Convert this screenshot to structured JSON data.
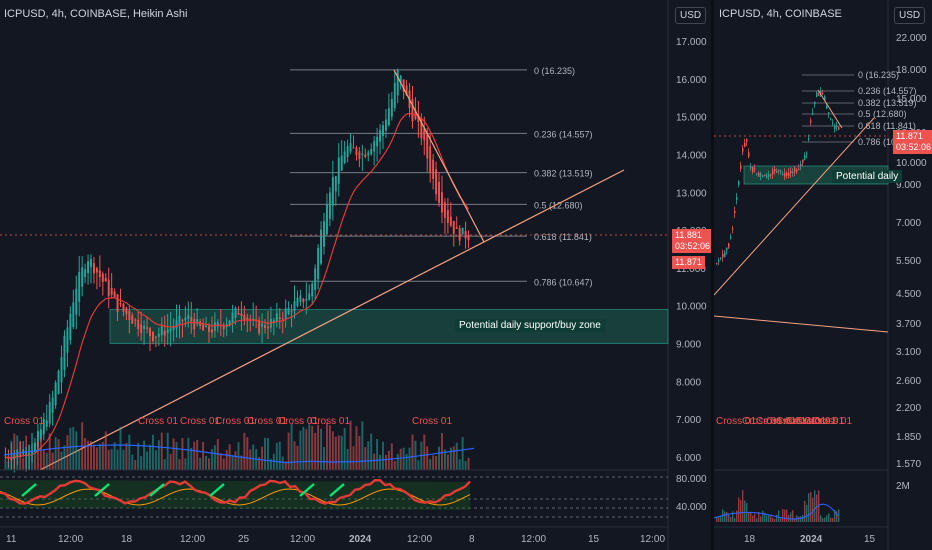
{
  "left_panel": {
    "title": "ICPUSD, 4h, COINBASE, Heikin Ashi",
    "currency_button": "USD",
    "price_axis": [
      "17.000",
      "16.000",
      "15.000",
      "14.000",
      "13.000",
      "12.000",
      "11.000",
      "10.000",
      "9.000",
      "8.000",
      "7.000",
      "6.000"
    ],
    "fib_levels": [
      {
        "label": "0 (16.235)",
        "value": 16.235
      },
      {
        "label": "0.236 (14.557)",
        "value": 14.557
      },
      {
        "label": "0.382 (13.519)",
        "value": 13.519
      },
      {
        "label": "0.5 (12.680)",
        "value": 12.68
      },
      {
        "label": "0.618 (11.841)",
        "value": 11.841
      },
      {
        "label": "0.786 (10.647)",
        "value": 10.647
      }
    ],
    "zone_label": "Potential daily support/buy zone",
    "zone_range": [
      9.0,
      9.9
    ],
    "tags": {
      "price": "11.881",
      "countdown": "03:52:06",
      "low": "11.871"
    },
    "cross_labels": [
      "Cross 01",
      "Cross 01",
      "Cross 01",
      "Cross 01",
      "Cross 01",
      "Cross 01",
      "Cross 01",
      "Cross 01"
    ],
    "osc_axis": [
      "80.000",
      "40.000"
    ],
    "time_axis": [
      "11",
      "12:00",
      "18",
      "12:00",
      "25",
      "12:00",
      "2024",
      "12:00",
      "8",
      "12:00",
      "15",
      "12:00"
    ]
  },
  "right_panel": {
    "title": "ICPUSD, 4h, COINBASE",
    "currency_button": "USD",
    "price_axis": [
      "22.000",
      "18.000",
      "15.000",
      "12.000",
      "10.000",
      "9.000",
      "7.000",
      "5.500",
      "4.500",
      "3.700",
      "3.100",
      "2.600",
      "2.200",
      "1.850",
      "1.570"
    ],
    "fib_labels": [
      "0 (16.235)",
      "0.236 (14.557)",
      "0.382 (13.519)",
      "0.5 (12.680)",
      "0.618 (11.841)",
      "0.786 (10.647)"
    ],
    "zone_label": "Potential daily",
    "tags": {
      "price": "11.871",
      "countdown": "03:52:06"
    },
    "cross_labels": [
      "Cross 01",
      "Cross 01",
      "Cross 01",
      "Cross 01",
      "Cross 01",
      "Cross 01",
      "Cross 01",
      "Cross 01",
      "Cross 01"
    ],
    "volume_axis": [
      "2M"
    ],
    "time_axis": [
      "18",
      "2024",
      "15"
    ]
  },
  "colors": {
    "background": "#131722",
    "bull": "#26a69a",
    "bear": "#ef5350",
    "zone": "#1b4d44",
    "trendline": "#f7a081",
    "fib": "#787b86",
    "ema": "#e53935"
  },
  "chart_data": [
    {
      "type": "candlestick",
      "title": "ICPUSD, 4h, COINBASE, Heikin Ashi",
      "ylim": [
        5.8,
        17.6
      ],
      "x_ticks": [
        "11",
        "12:00",
        "18",
        "12:00",
        "25",
        "12:00",
        "2024",
        "12:00",
        "8",
        "12:00",
        "15",
        "12:00"
      ],
      "series": [
        {
          "name": "",
          "points": [
            [
              0,
              6.0
            ],
            [
              5,
              6.3
            ],
            [
              8,
              7.5
            ],
            [
              10,
              9.0
            ],
            [
              12,
              10.5
            ],
            [
              14,
              11.3
            ],
            [
              16,
              10.8
            ],
            [
              19,
              10.0
            ],
            [
              22,
              9.6
            ],
            [
              25,
              9.2
            ],
            [
              28,
              9.4
            ],
            [
              31,
              9.7
            ],
            [
              34,
              9.3
            ],
            [
              37,
              9.5
            ],
            [
              40,
              9.9
            ],
            [
              43,
              9.4
            ],
            [
              46,
              9.6
            ],
            [
              49,
              10.0
            ],
            [
              52,
              10.3
            ],
            [
              55,
              13.0
            ],
            [
              58,
              14.2
            ],
            [
              61,
              14.0
            ],
            [
              64,
              14.6
            ],
            [
              66,
              15.5
            ],
            [
              67,
              16.2
            ],
            [
              69,
              15.2
            ],
            [
              71,
              14.5
            ],
            [
              73,
              13.3
            ],
            [
              75,
              12.4
            ],
            [
              77,
              11.9
            ],
            [
              79,
              11.87
            ]
          ]
        }
      ],
      "fib_levels": [
        16.235,
        14.557,
        13.519,
        12.68,
        11.841,
        10.647
      ],
      "zone": [
        9.0,
        9.9
      ],
      "last_price": 11.881
    },
    {
      "type": "candlestick",
      "title": "ICPUSD, 4h, COINBASE",
      "scale": "log",
      "ylim": [
        1.5,
        23
      ],
      "x_ticks": [
        "18",
        "2024",
        "15"
      ],
      "last_price": 11.871
    }
  ]
}
